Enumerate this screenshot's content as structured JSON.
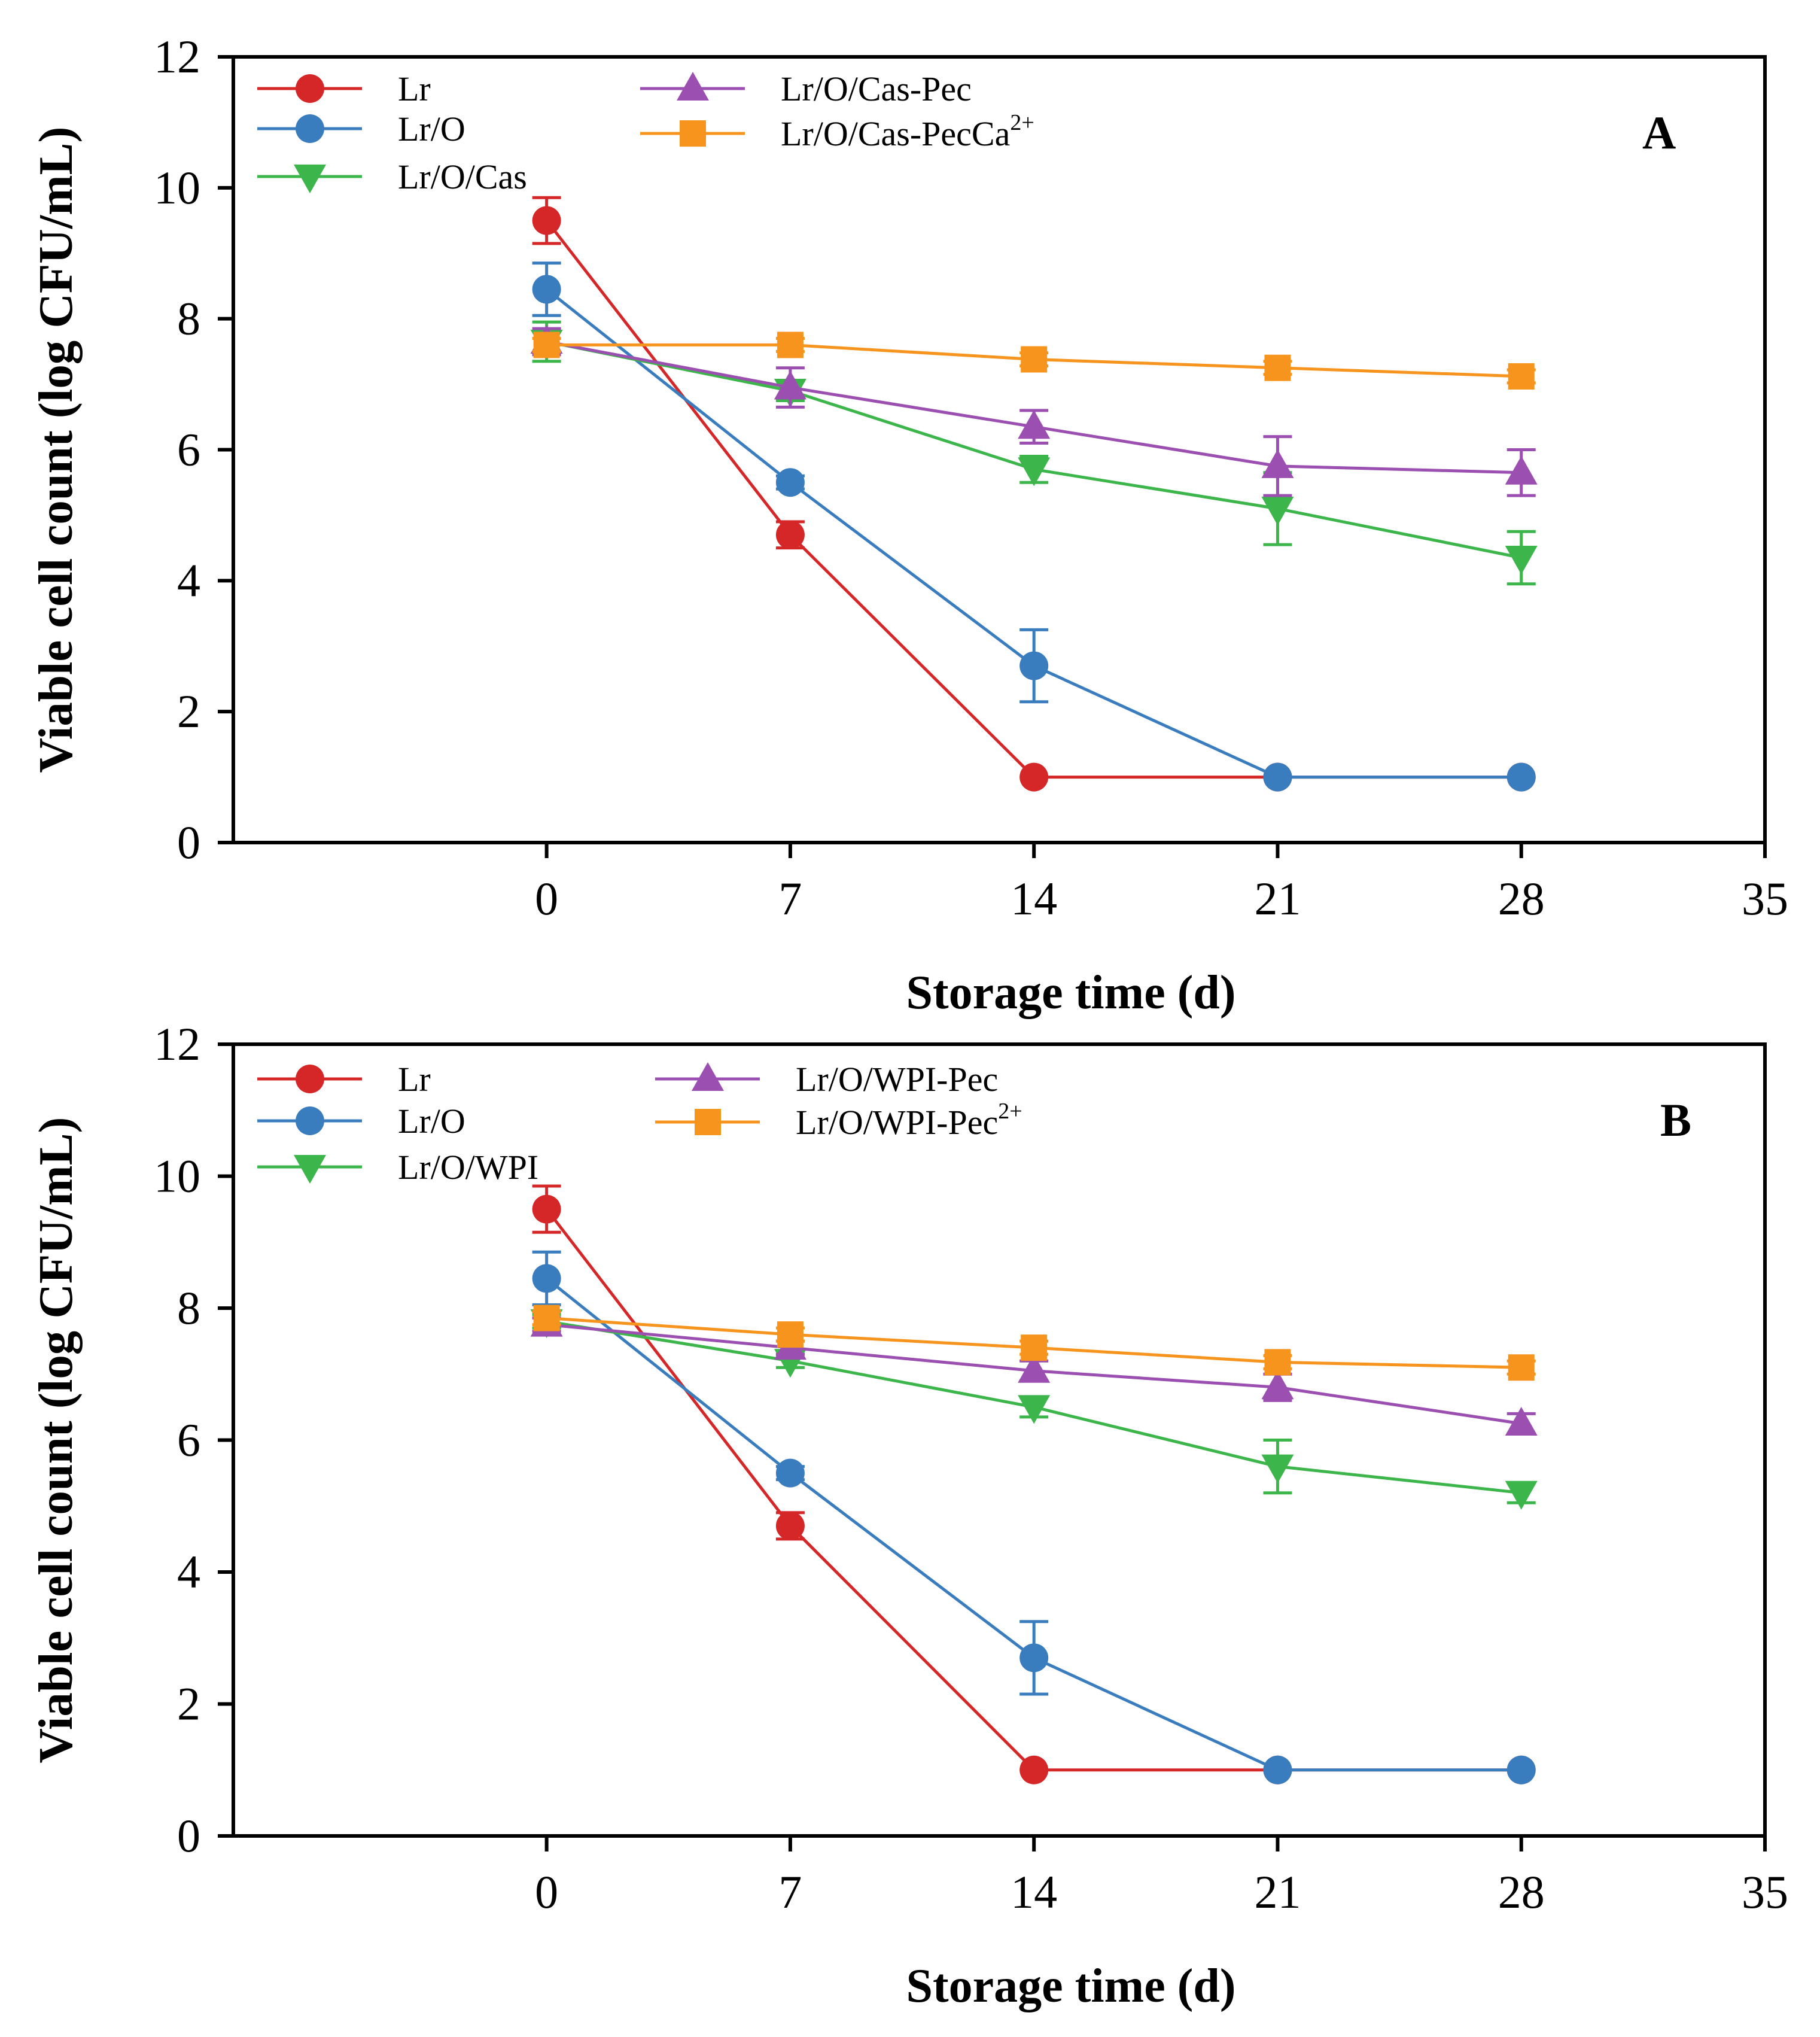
{
  "chart_data": [
    {
      "type": "line",
      "panel_label": "A",
      "xlabel": "Storage time (d)",
      "ylabel": "Viable cell count (log CFU/mL)",
      "xlim": [
        -9,
        35
      ],
      "ylim": [
        0,
        12
      ],
      "xticks": [
        0,
        7,
        14,
        21,
        28,
        35
      ],
      "yticks": [
        0,
        2,
        4,
        6,
        8,
        10,
        12
      ],
      "x": [
        0,
        7,
        14,
        21,
        28
      ],
      "series": [
        {
          "name": "Lr",
          "color": "#d62728",
          "marker": "circle",
          "values": [
            9.5,
            4.7,
            1.0,
            1.0,
            1.0
          ],
          "errors": [
            0.35,
            0.2,
            0,
            0,
            0
          ]
        },
        {
          "name": "Lr/O",
          "color": "#3a7dbf",
          "marker": "circle",
          "values": [
            8.45,
            5.5,
            2.7,
            1.0,
            1.0
          ],
          "errors": [
            0.4,
            0.1,
            0.55,
            0,
            0
          ]
        },
        {
          "name": "Lr/O/Cas",
          "color": "#3cb54a",
          "marker": "triangle-down",
          "values": [
            7.65,
            6.9,
            5.7,
            5.1,
            4.35
          ],
          "errors": [
            0.3,
            0.15,
            0.2,
            0.55,
            0.4
          ]
        },
        {
          "name": "Lr/O/Cas-Pec",
          "color": "#9b4fb0",
          "marker": "triangle-up",
          "values": [
            7.65,
            6.95,
            6.35,
            5.75,
            5.65
          ],
          "errors": [
            0.2,
            0.3,
            0.25,
            0.45,
            0.35
          ]
        },
        {
          "name": "Lr/O/Cas-PecCa",
          "sup": "2+",
          "color": "#f7941d",
          "marker": "square",
          "values": [
            7.6,
            7.6,
            7.38,
            7.25,
            7.12
          ],
          "errors": [
            0.1,
            0.1,
            0.1,
            0.1,
            0.1
          ]
        }
      ]
    },
    {
      "type": "line",
      "panel_label": "B",
      "xlabel": "Storage time (d)",
      "ylabel": "Viable cell count (log CFU/mL)",
      "xlim": [
        -9,
        35
      ],
      "ylim": [
        0,
        12
      ],
      "xticks": [
        0,
        7,
        14,
        21,
        28,
        35
      ],
      "yticks": [
        0,
        2,
        4,
        6,
        8,
        10,
        12
      ],
      "x": [
        0,
        7,
        14,
        21,
        28
      ],
      "series": [
        {
          "name": "Lr",
          "color": "#d62728",
          "marker": "circle",
          "values": [
            9.5,
            4.7,
            1.0,
            1.0,
            1.0
          ],
          "errors": [
            0.35,
            0.2,
            0,
            0,
            0
          ]
        },
        {
          "name": "Lr/O",
          "color": "#3a7dbf",
          "marker": "circle",
          "values": [
            8.45,
            5.5,
            2.7,
            1.0,
            1.0
          ],
          "errors": [
            0.4,
            0.1,
            0.55,
            0,
            0
          ]
        },
        {
          "name": "Lr/O/WPI",
          "color": "#3cb54a",
          "marker": "triangle-down",
          "values": [
            7.8,
            7.2,
            6.5,
            5.6,
            5.2
          ],
          "errors": [
            0.1,
            0.1,
            0.15,
            0.4,
            0.15
          ]
        },
        {
          "name": "Lr/O/WPI-Pec",
          "color": "#9b4fb0",
          "marker": "triangle-up",
          "values": [
            7.75,
            7.4,
            7.05,
            6.8,
            6.25
          ],
          "errors": [
            0.1,
            0.1,
            0.15,
            0.2,
            0.15
          ]
        },
        {
          "name": "Lr/O/WPI-Pec",
          "sup": "2+",
          "color": "#f7941d",
          "marker": "square",
          "values": [
            7.85,
            7.6,
            7.4,
            7.18,
            7.1
          ],
          "errors": [
            0.1,
            0.1,
            0.1,
            0.1,
            0.1
          ]
        }
      ]
    }
  ]
}
